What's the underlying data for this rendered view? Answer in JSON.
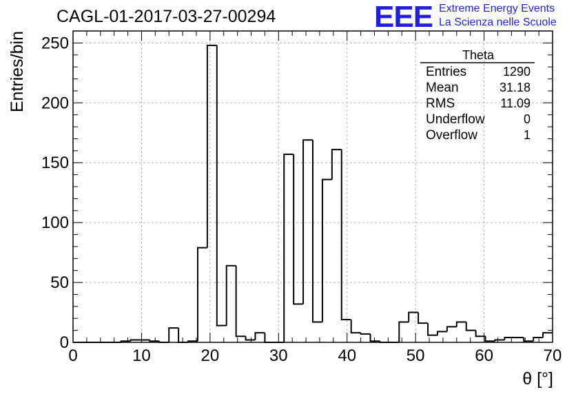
{
  "header": {
    "run_title": "CAGL-01-2017-03-27-00294",
    "logo_text": "EEE",
    "tagline_1": "Extreme Energy Events",
    "tagline_2": "La Scienza nelle Scuole"
  },
  "stats_box": {
    "title": "Theta",
    "rows": [
      {
        "label": "Entries",
        "value": "1290"
      },
      {
        "label": "Mean",
        "value": "31.18"
      },
      {
        "label": "RMS",
        "value": "11.09"
      },
      {
        "label": "Underflow",
        "value": "0"
      },
      {
        "label": "Overflow",
        "value": "1"
      }
    ]
  },
  "colors": {
    "logo": "#1f1fe0",
    "line": "#000000",
    "grid": "#b4b4b4"
  },
  "chart_data": {
    "type": "histogram",
    "title": "CAGL-01-2017-03-27-00294",
    "xlabel": "θ [°]",
    "ylabel": "Entries/bin",
    "xlim": [
      0,
      70
    ],
    "ylim": [
      0,
      260
    ],
    "grid": true,
    "legend": "top-right",
    "x_ticks": [
      0,
      10,
      20,
      30,
      40,
      50,
      60,
      70
    ],
    "y_ticks": [
      0,
      50,
      100,
      150,
      200,
      250
    ],
    "bin_width": 1.4,
    "bin_edges_start": 0,
    "values": [
      0,
      0,
      0,
      0,
      0,
      1,
      2,
      2,
      1,
      0,
      12,
      0,
      1,
      79,
      248,
      14,
      64,
      5,
      2,
      8,
      0,
      0,
      157,
      32,
      169,
      17,
      136,
      161,
      19,
      8,
      7,
      1,
      0,
      0,
      17,
      25,
      16,
      6,
      9,
      13,
      17,
      10,
      5,
      1,
      2,
      4,
      4,
      1,
      4,
      8
    ]
  }
}
